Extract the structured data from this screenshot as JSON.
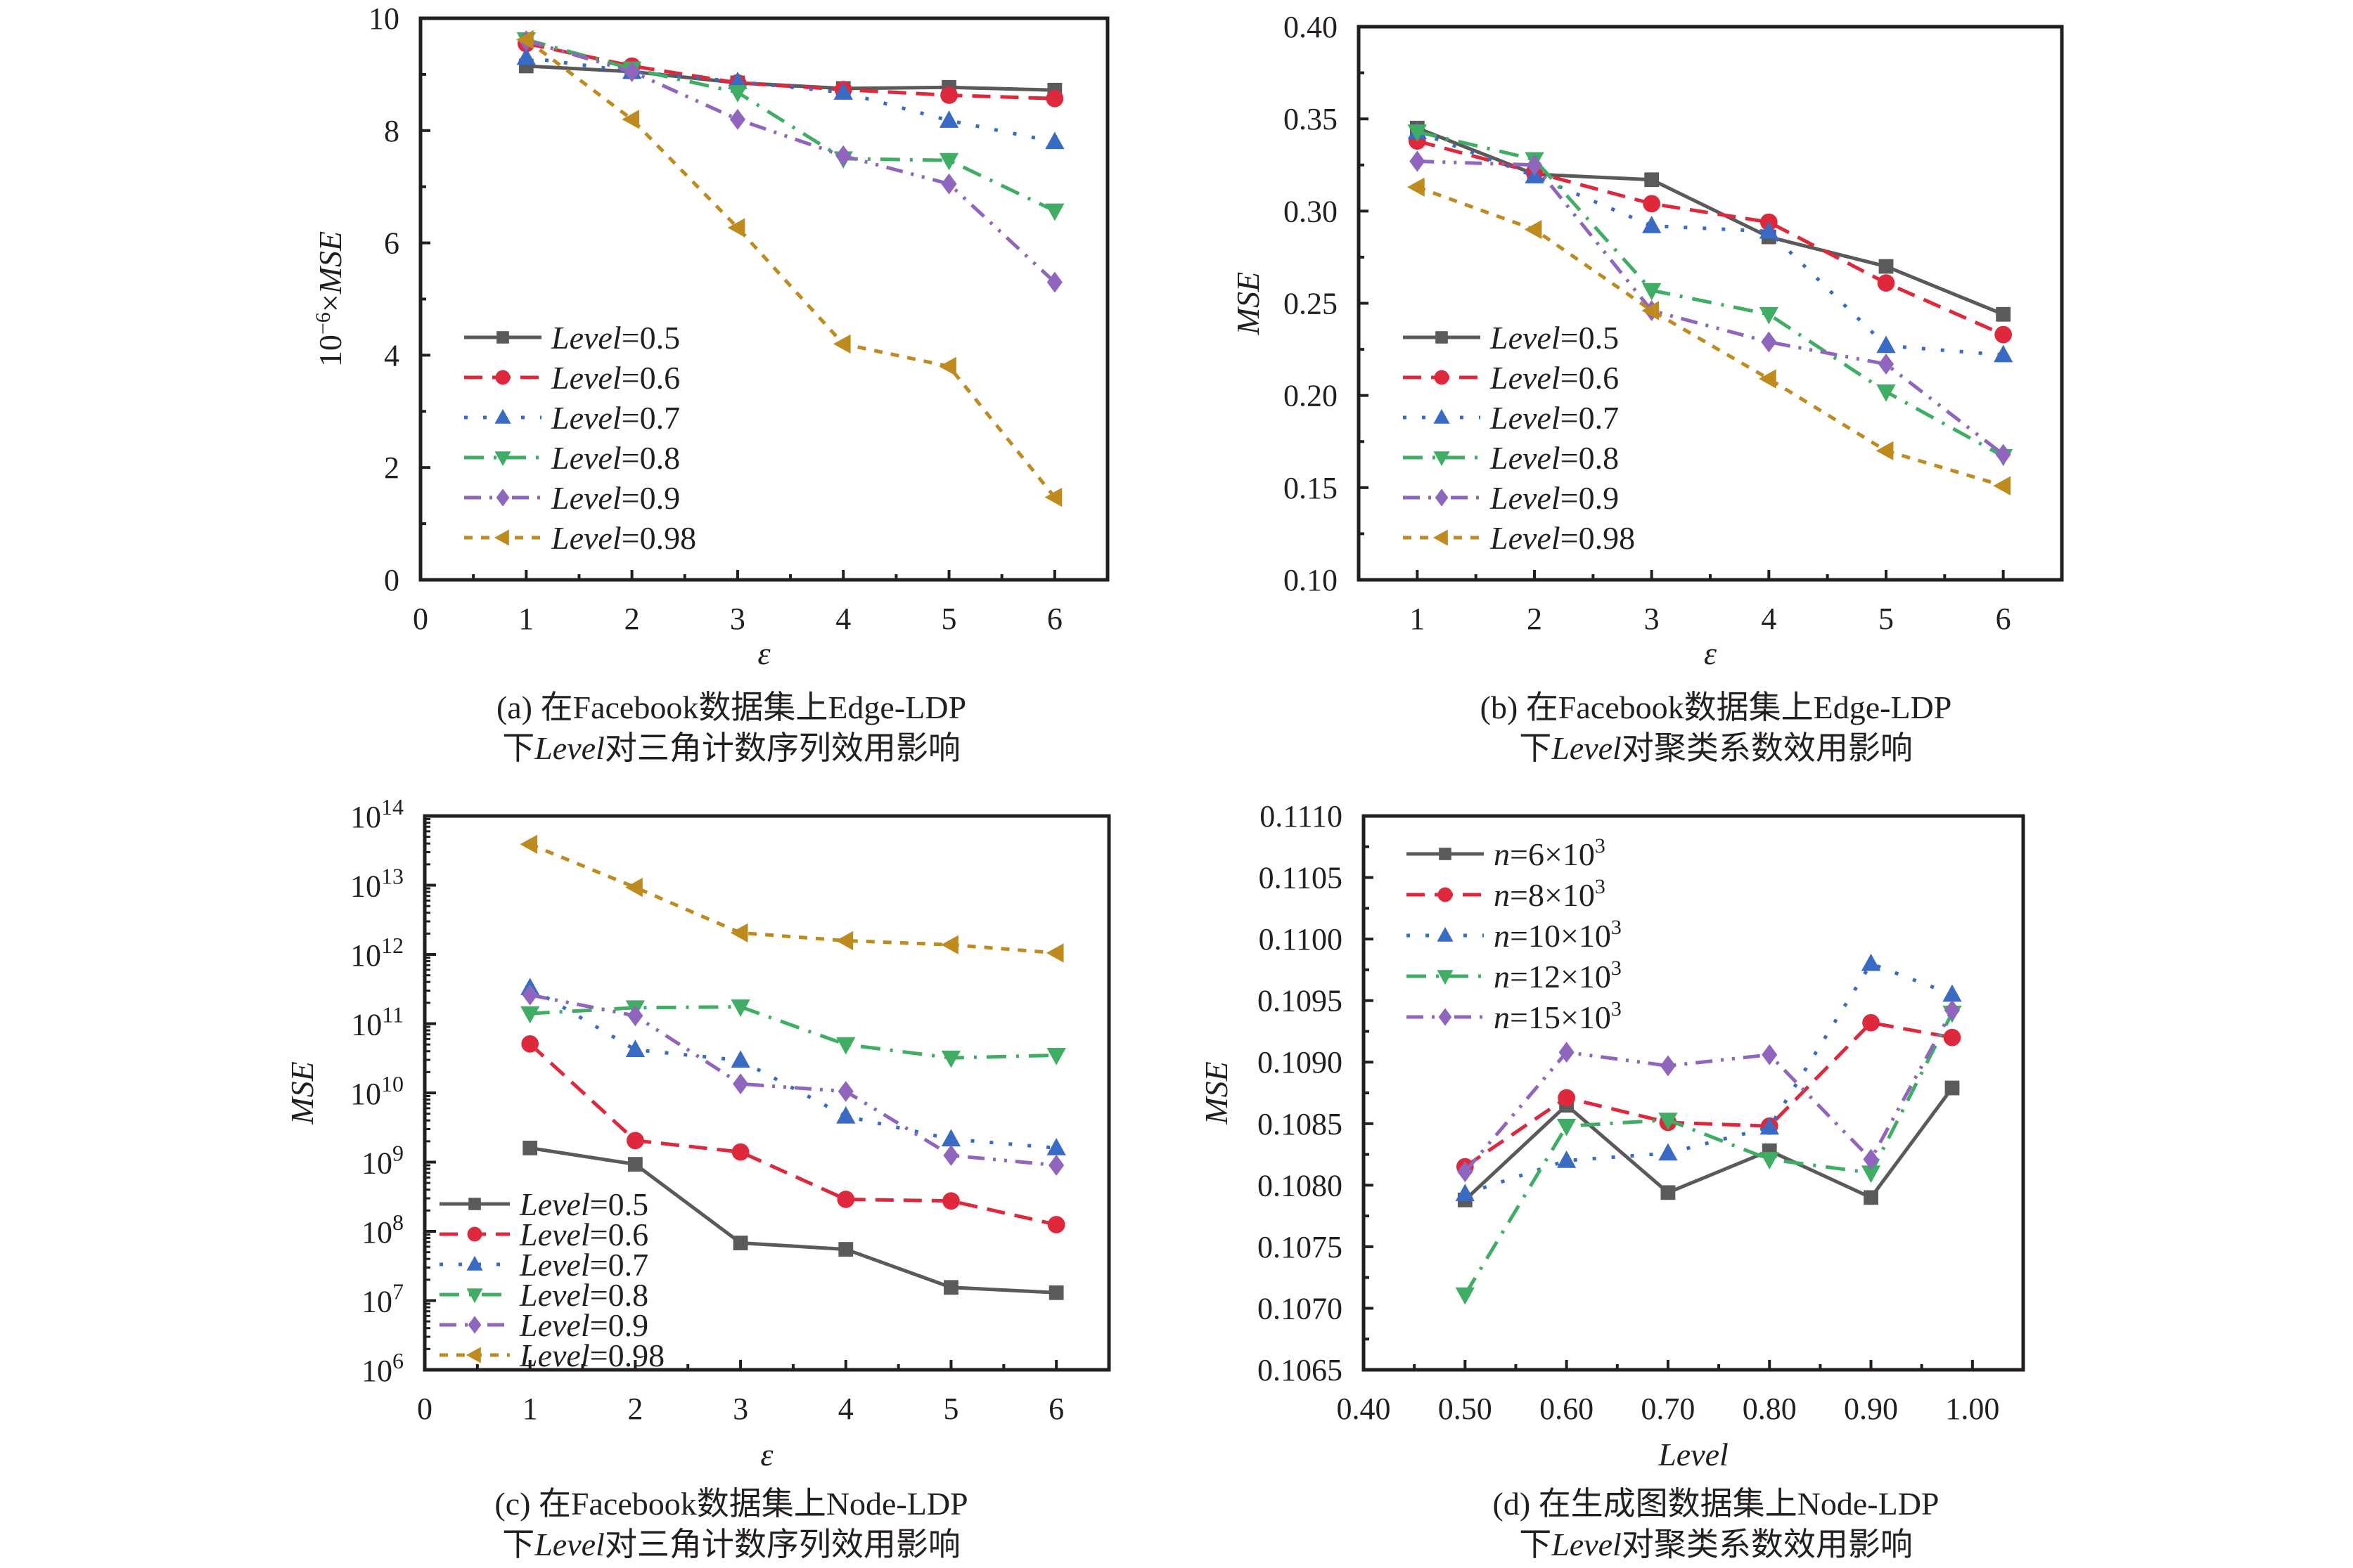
{
  "chart_data": [
    {
      "id": "a",
      "type": "line",
      "yscale": "linear",
      "caption_line1": "(a)  在Facebook数据集上Edge-LDP",
      "caption_line2_prefix": "下",
      "caption_line2_italic": "Level",
      "caption_line2_suffix": "对三角计数序列效用影响",
      "xlabel": "ε",
      "ylabel_prefix": "10",
      "ylabel_sup": "−6",
      "ylabel_suffix": "×",
      "ylabel_italic": "MSE",
      "xlim": [
        0,
        6.5
      ],
      "ylim": [
        0,
        10
      ],
      "xticks": [
        0,
        1,
        2,
        3,
        4,
        5,
        6
      ],
      "xtick_labels": [
        "0",
        "1",
        "2",
        "3",
        "4",
        "5",
        "6"
      ],
      "yticks": [
        0,
        2,
        4,
        6,
        8,
        10
      ],
      "ytick_labels": [
        "0",
        "2",
        "4",
        "6",
        "8",
        "10"
      ],
      "legend_position": "lower-left",
      "x": [
        1,
        2,
        3,
        4,
        5,
        6
      ],
      "series": [
        {
          "name": "Level=0.5",
          "label_italic": "Level",
          "label_rest": "=0.5",
          "color": "#5a5a5a",
          "marker": "square",
          "dash": "",
          "values": [
            9.15,
            9.05,
            8.85,
            8.75,
            8.77,
            8.72
          ]
        },
        {
          "name": "Level=0.6",
          "label_italic": "Level",
          "label_rest": "=0.6",
          "color": "#e0283c",
          "marker": "circle",
          "dash": "26 14",
          "values": [
            9.55,
            9.15,
            8.85,
            8.73,
            8.63,
            8.57
          ]
        },
        {
          "name": "Level=0.7",
          "label_italic": "Level",
          "label_rest": "=0.7",
          "color": "#3a6bc4",
          "marker": "triangle-up",
          "dash": "5 22",
          "values": [
            9.3,
            9.05,
            8.87,
            8.68,
            8.18,
            7.8
          ]
        },
        {
          "name": "Level=0.8",
          "label_italic": "Level",
          "label_rest": "=0.8",
          "color": "#3fae64",
          "marker": "triangle-down",
          "dash": "28 14 4 14",
          "values": [
            9.62,
            9.1,
            8.68,
            7.5,
            7.47,
            6.57
          ]
        },
        {
          "name": "Level=0.9",
          "label_italic": "Level",
          "label_rest": "=0.9",
          "color": "#8f65bd",
          "marker": "diamond",
          "dash": "24 12 4 12 4 12",
          "values": [
            9.6,
            9.05,
            8.2,
            7.55,
            7.05,
            5.3
          ]
        },
        {
          "name": "Level=0.98",
          "label_italic": "Level",
          "label_rest": "=0.98",
          "color": "#bf8b1e",
          "marker": "triangle-left",
          "dash": "12 12",
          "values": [
            9.62,
            8.2,
            6.27,
            4.2,
            3.8,
            1.47
          ]
        }
      ]
    },
    {
      "id": "b",
      "type": "line",
      "yscale": "linear",
      "caption_line1": "(b)  在Facebook数据集上Edge-LDP",
      "caption_line2_prefix": "下",
      "caption_line2_italic": "Level",
      "caption_line2_suffix": "对聚类系数效用影响",
      "xlabel": "ε",
      "ylabel_prefix": "",
      "ylabel_sup": "",
      "ylabel_suffix": "",
      "ylabel_italic": "MSE",
      "xlim": [
        0.5,
        6.5
      ],
      "ylim": [
        0.1,
        0.4
      ],
      "xticks": [
        1,
        2,
        3,
        4,
        5,
        6
      ],
      "xtick_labels": [
        "1",
        "2",
        "3",
        "4",
        "5",
        "6"
      ],
      "yticks": [
        0.1,
        0.15,
        0.2,
        0.25,
        0.3,
        0.35,
        0.4
      ],
      "ytick_labels": [
        "0.10",
        "0.15",
        "0.20",
        "0.25",
        "0.30",
        "0.35",
        "0.40"
      ],
      "legend_position": "lower-left",
      "x": [
        1,
        2,
        3,
        4,
        5,
        6
      ],
      "series": [
        {
          "name": "Level=0.5",
          "label_italic": "Level",
          "label_rest": "=0.5",
          "color": "#5a5a5a",
          "marker": "square",
          "dash": "",
          "values": [
            0.345,
            0.32,
            0.317,
            0.286,
            0.27,
            0.244
          ]
        },
        {
          "name": "Level=0.6",
          "label_italic": "Level",
          "label_rest": "=0.6",
          "color": "#e0283c",
          "marker": "circle",
          "dash": "26 14",
          "values": [
            0.338,
            0.321,
            0.304,
            0.294,
            0.261,
            0.233
          ]
        },
        {
          "name": "Level=0.7",
          "label_italic": "Level",
          "label_rest": "=0.7",
          "color": "#3a6bc4",
          "marker": "triangle-up",
          "dash": "5 22",
          "values": [
            0.343,
            0.319,
            0.292,
            0.289,
            0.227,
            0.222
          ]
        },
        {
          "name": "Level=0.8",
          "label_italic": "Level",
          "label_rest": "=0.8",
          "color": "#3fae64",
          "marker": "triangle-down",
          "dash": "28 14 4 14",
          "values": [
            0.343,
            0.328,
            0.257,
            0.244,
            0.202,
            0.167
          ]
        },
        {
          "name": "Level=0.9",
          "label_italic": "Level",
          "label_rest": "=0.9",
          "color": "#8f65bd",
          "marker": "diamond",
          "dash": "24 12 4 12 4 12",
          "values": [
            0.327,
            0.325,
            0.246,
            0.229,
            0.217,
            0.168
          ]
        },
        {
          "name": "Level=0.98",
          "label_italic": "Level",
          "label_rest": "=0.98",
          "color": "#bf8b1e",
          "marker": "triangle-left",
          "dash": "12 12",
          "values": [
            0.313,
            0.29,
            0.246,
            0.209,
            0.17,
            0.151
          ]
        }
      ]
    },
    {
      "id": "c",
      "type": "line",
      "yscale": "log",
      "caption_line1": "(c)  在Facebook数据集上Node-LDP",
      "caption_line2_prefix": "下",
      "caption_line2_italic": "Level",
      "caption_line2_suffix": "对三角计数序列效用影响",
      "xlabel": "ε",
      "ylabel_prefix": "",
      "ylabel_sup": "",
      "ylabel_suffix": "",
      "ylabel_italic": "MSE",
      "xlim": [
        0,
        6.5
      ],
      "ylim": [
        1000000.0,
        100000000000000.0
      ],
      "xticks": [
        0,
        1,
        2,
        3,
        4,
        5,
        6
      ],
      "xtick_labels": [
        "0",
        "1",
        "2",
        "3",
        "4",
        "5",
        "6"
      ],
      "yticks_exp": [
        6,
        7,
        8,
        9,
        10,
        11,
        12,
        13,
        14
      ],
      "ytick_base": "10",
      "legend_position": "lower-left",
      "x": [
        1,
        2,
        3,
        4,
        5,
        6
      ],
      "series": [
        {
          "name": "Level=0.5",
          "label_italic": "Level",
          "label_rest": "=0.5",
          "color": "#5a5a5a",
          "marker": "square",
          "dash": "",
          "values": [
            1600000000.0,
            930000000.0,
            68000000.0,
            55000000.0,
            15500000.0,
            13000000.0
          ]
        },
        {
          "name": "Level=0.6",
          "label_italic": "Level",
          "label_rest": "=0.6",
          "color": "#e0283c",
          "marker": "circle",
          "dash": "26 14",
          "values": [
            51000000000.0,
            2050000000.0,
            1400000000.0,
            290000000.0,
            275000000.0,
            125000000.0
          ]
        },
        {
          "name": "Level=0.7",
          "label_italic": "Level",
          "label_rest": "=0.7",
          "color": "#3a6bc4",
          "marker": "triangle-up",
          "dash": "5 22",
          "values": [
            330000000000.0,
            42000000000.0,
            29500000000.0,
            4600000000.0,
            2150000000.0,
            1600000000.0
          ]
        },
        {
          "name": "Level=0.8",
          "label_italic": "Level",
          "label_rest": "=0.8",
          "color": "#3fae64",
          "marker": "triangle-down",
          "dash": "28 14 4 14",
          "values": [
            140000000000.0,
            170000000000.0,
            175000000000.0,
            50000000000.0,
            32000000000.0,
            35000000000.0
          ]
        },
        {
          "name": "Level=0.9",
          "label_italic": "Level",
          "label_rest": "=0.9",
          "color": "#8f65bd",
          "marker": "diamond",
          "dash": "24 12 4 12 4 12",
          "values": [
            260000000000.0,
            130000000000.0,
            13500000000.0,
            10500000000.0,
            1250000000.0,
            900000000.0
          ]
        },
        {
          "name": "Level=0.98",
          "label_italic": "Level",
          "label_rest": "=0.98",
          "color": "#bf8b1e",
          "marker": "triangle-left",
          "dash": "12 12",
          "values": [
            39000000000000.0,
            9300000000000.0,
            2050000000000.0,
            1580000000000.0,
            1380000000000.0,
            1050000000000.0
          ]
        }
      ]
    },
    {
      "id": "d",
      "type": "line",
      "yscale": "linear",
      "caption_line1": "(d)  在生成图数据集上Node-LDP",
      "caption_line2_prefix": "下",
      "caption_line2_italic": "Level",
      "caption_line2_suffix": "对聚类系数效用影响",
      "xlabel": "Level",
      "xlabel_italic": true,
      "ylabel_prefix": "",
      "ylabel_sup": "",
      "ylabel_suffix": "",
      "ylabel_italic": "MSE",
      "xlim": [
        0.4,
        1.05
      ],
      "ylim": [
        0.1065,
        0.111
      ],
      "xticks": [
        0.4,
        0.5,
        0.6,
        0.7,
        0.8,
        0.9,
        1.0
      ],
      "xtick_labels": [
        "0.40",
        "0.50",
        "0.60",
        "0.70",
        "0.80",
        "0.90",
        "1.00"
      ],
      "yticks": [
        0.1065,
        0.107,
        0.1075,
        0.108,
        0.1085,
        0.109,
        0.1095,
        0.11,
        0.1105,
        0.111
      ],
      "ytick_labels": [
        "0.1065",
        "0.1070",
        "0.1075",
        "0.1080",
        "0.1085",
        "0.1090",
        "0.1095",
        "0.1100",
        "0.1105",
        "0.1110"
      ],
      "legend_position": "top-left",
      "x": [
        0.5,
        0.6,
        0.7,
        0.8,
        0.9,
        0.98
      ],
      "series": [
        {
          "name": "n=6×10^3",
          "label_italic": "n",
          "label_rest": "=6×10",
          "label_sup": "3",
          "color": "#5a5a5a",
          "marker": "square",
          "dash": "",
          "values": [
            0.10788,
            0.10865,
            0.10794,
            0.10828,
            0.1079,
            0.10879
          ]
        },
        {
          "name": "n=8×10^3",
          "label_italic": "n",
          "label_rest": "=8×10",
          "label_sup": "3",
          "color": "#e0283c",
          "marker": "circle",
          "dash": "26 14",
          "values": [
            0.10815,
            0.10871,
            0.10851,
            0.10848,
            0.10932,
            0.1092
          ]
        },
        {
          "name": "n=10×10^3",
          "label_italic": "n",
          "label_rest": "=10×10",
          "label_sup": "3",
          "color": "#3a6bc4",
          "marker": "triangle-up",
          "dash": "5 22",
          "values": [
            0.10793,
            0.1082,
            0.10826,
            0.10847,
            0.1098,
            0.10955
          ]
        },
        {
          "name": "n=12×10^3",
          "label_italic": "n",
          "label_rest": "=12×10",
          "label_sup": "3",
          "color": "#3fae64",
          "marker": "triangle-down",
          "dash": "28 14 4 14",
          "values": [
            0.10711,
            0.10848,
            0.10853,
            0.10821,
            0.1081,
            0.1094
          ]
        },
        {
          "name": "n=15×10^3",
          "label_italic": "n",
          "label_rest": "=15×10",
          "label_sup": "3",
          "color": "#8f65bd",
          "marker": "diamond",
          "dash": "24 12 4 12 4 12",
          "values": [
            0.10811,
            0.10908,
            0.10897,
            0.10906,
            0.10821,
            0.10942
          ]
        }
      ]
    }
  ]
}
